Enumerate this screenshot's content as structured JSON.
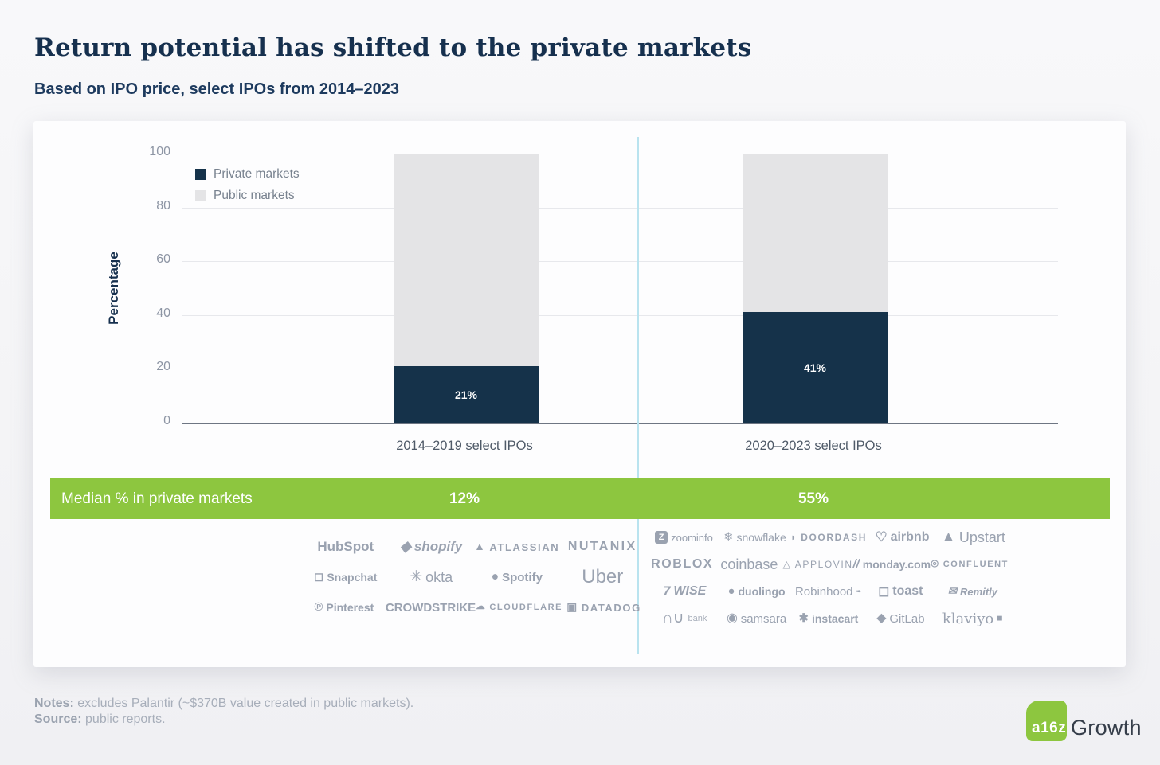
{
  "header": {
    "title": "Return potential has shifted to the private markets",
    "subtitle": "Based on IPO price, select IPOs from 2014–2023"
  },
  "chart_data": {
    "type": "bar",
    "stacked": true,
    "title": "Return potential has shifted to the private markets",
    "subtitle": "Based on IPO price, select IPOs from 2014–2023",
    "categories": [
      "2014–2019 select IPOs",
      "2020–2023 select IPOs"
    ],
    "series": [
      {
        "name": "Private markets",
        "values": [
          21,
          41
        ],
        "color": "#15324a"
      },
      {
        "name": "Public markets",
        "values": [
          79,
          59
        ],
        "color": "#e4e4e6"
      }
    ],
    "bar_labels": [
      "21%",
      "41%"
    ],
    "xlabel": "",
    "ylabel": "Percentage",
    "ylim": [
      0,
      100
    ],
    "yticks": [
      0,
      20,
      40,
      60,
      80,
      100
    ],
    "grid": true,
    "legend_position": "top-left",
    "annotation_row": {
      "label": "Median % in private markets",
      "values": [
        "12%",
        "55%"
      ],
      "color": "#8dc63f"
    }
  },
  "colors": {
    "accent_green": "#8dc63f",
    "navy": "#15324a",
    "public_gray": "#e4e4e6",
    "divider_cyan": "#b9e3ef",
    "logo_gray": "#9aa2b0"
  },
  "logos": {
    "groups": [
      {
        "id": "left",
        "era": "2014–2019",
        "rows": [
          [
            {
              "name": "hubspot",
              "label": "HubSpot",
              "cls": "s17 b"
            },
            {
              "name": "shopify",
              "icon": "◆",
              "label": "shopify",
              "cls": "s17 b i"
            },
            {
              "name": "atlassian",
              "icon": "▲",
              "label": "ATLASSIAN",
              "cls": "s13 b sp"
            },
            {
              "name": "nutanix",
              "label": "NUTANIX",
              "cls": "s16 b sp2"
            }
          ],
          [
            {
              "name": "snapchat",
              "icon": "◻",
              "label": "Snapchat",
              "cls": "s14 b"
            },
            {
              "name": "okta",
              "icon": "✳",
              "label": "okta",
              "cls": "s18"
            },
            {
              "name": "spotify",
              "icon": "●",
              "label": "Spotify",
              "cls": "s15 b"
            },
            {
              "name": "uber",
              "label": "Uber",
              "cls": "s24 light"
            }
          ],
          [
            {
              "name": "pinterest",
              "icon": "℗",
              "label": "Pinterest",
              "cls": "s14 b"
            },
            {
              "name": "crowdstrike",
              "label": "CROWDSTRIKE",
              "cls": "s15 b"
            },
            {
              "name": "cloudflare",
              "icon": "☁",
              "label": "CLOUDFLARE",
              "cls": "s11 b sp"
            },
            {
              "name": "datadog",
              "icon": "▣",
              "label": "DATADOG",
              "cls": "s13 b sp"
            }
          ]
        ]
      },
      {
        "id": "right",
        "era": "2020–2023",
        "rows": [
          [
            {
              "name": "zoominfo",
              "icon": "Z",
              "iconCls": "badge",
              "label": "zoominfo",
              "cls": "s13"
            },
            {
              "name": "snowflake",
              "icon": "❄",
              "label": "snowflake",
              "cls": "s14 light"
            },
            {
              "name": "doordash",
              "icon": "◗",
              "label": "DOORDASH",
              "cls": "s12 b sp"
            },
            {
              "name": "airbnb",
              "icon": "♡",
              "label": "airbnb",
              "cls": "s16 b"
            },
            {
              "name": "upstart",
              "icon": "▲",
              "label": "Upstart",
              "cls": "s18"
            }
          ],
          [
            {
              "name": "roblox",
              "label": "ROBLOX",
              "cls": "s16 b sp"
            },
            {
              "name": "coinbase",
              "label": "coinbase",
              "cls": "s18"
            },
            {
              "name": "applovin",
              "icon": "△",
              "label": "APPLOVIN",
              "cls": "s12 sp"
            },
            {
              "name": "monday",
              "icon": "//",
              "iconCls": "ital",
              "label": "monday.com",
              "cls": "s14 b"
            },
            {
              "name": "confluent",
              "icon": "◎",
              "label": "CONFLUENT",
              "cls": "s11 b sp"
            }
          ],
          [
            {
              "name": "wise",
              "icon": "7",
              "iconCls": "ital",
              "label": "WISE",
              "cls": "s16 b i"
            },
            {
              "name": "duolingo",
              "icon": "●",
              "label": "duolingo",
              "cls": "s14 b"
            },
            {
              "name": "robinhood",
              "label": "Robinhood",
              "iconAfter": "✒",
              "cls": "s15"
            },
            {
              "name": "toast",
              "icon": "◻",
              "label": "toast",
              "cls": "s16 b"
            },
            {
              "name": "remitly",
              "icon": "✉",
              "label": "Remitly",
              "cls": "s13 b i"
            }
          ],
          [
            {
              "name": "nubank",
              "icon": "∩∪",
              "label": "",
              "suffix": "bank",
              "cls": "s18"
            },
            {
              "name": "samsara",
              "icon": "◉",
              "label": "samsara",
              "cls": "s15 light"
            },
            {
              "name": "instacart",
              "icon": "✱",
              "label": "instacart",
              "cls": "s14 b"
            },
            {
              "name": "gitlab",
              "icon": "◆",
              "label": "GitLab",
              "cls": "s15"
            },
            {
              "name": "klaviyo",
              "label": "klaviyo",
              "iconAfter": "◼",
              "cls": "s18 serif"
            }
          ]
        ]
      }
    ]
  },
  "footer": {
    "notes_label": "Notes:",
    "notes_text": " excludes Palantir (~$370B value created in public markets).",
    "source_label": "Source:",
    "source_text": " public reports."
  },
  "brand": {
    "logo_text": "a16z",
    "wordmark": "Growth",
    "green": "#8dc63f"
  }
}
